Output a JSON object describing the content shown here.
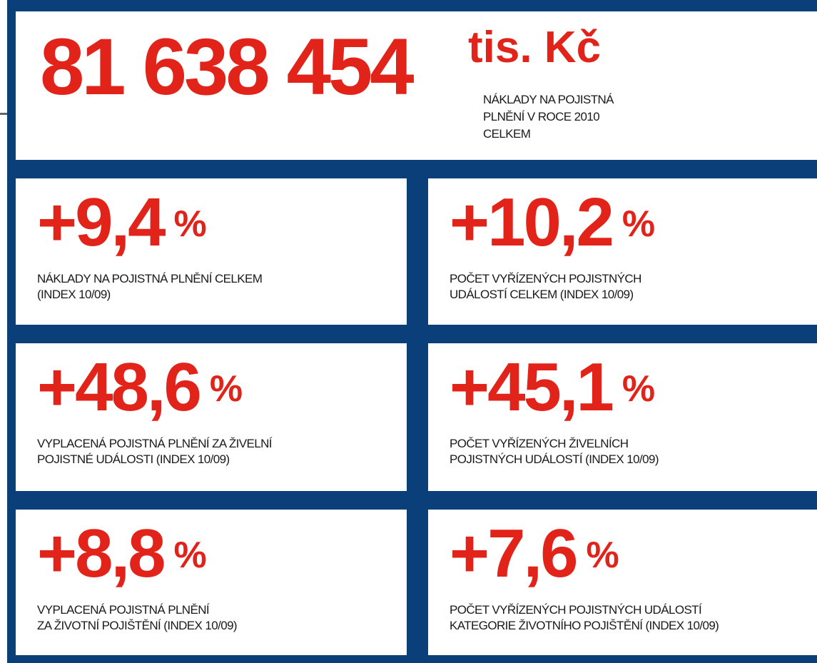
{
  "header": {
    "value": "81 638 454",
    "unit": "tis. Kč",
    "description": [
      "NÁKLADY NA POJISTNÁ",
      "PLNĚNÍ V ROCE 2010",
      "CELKEM"
    ]
  },
  "tiles": [
    {
      "value": "+9,4",
      "unit": "%",
      "description": [
        "NÁKLADY NA POJISTNÁ PLNĚNÍ CELKEM",
        "(INDEX 10/09)"
      ]
    },
    {
      "value": "+10,2",
      "unit": "%",
      "description": [
        "POČET VYŘÍZENÝCH POJISTNÝCH",
        "UDÁLOSTÍ CELKEM (INDEX 10/09)"
      ]
    },
    {
      "value": "+48,6",
      "unit": "%",
      "description": [
        "VYPLACENÁ POJISTNÁ PLNĚNÍ ZA ŽIVELNÍ",
        "POJISTNÉ UDÁLOSTI (INDEX 10/09)"
      ]
    },
    {
      "value": "+45,1",
      "unit": "%",
      "description": [
        "POČET VYŘÍZENÝCH ŽIVELNÍCH",
        "POJISTNÝCH UDÁLOSTÍ (INDEX 10/09)"
      ]
    },
    {
      "value": "+8,8",
      "unit": "%",
      "description": [
        "VYPLACENÁ POJISTNÁ PLNĚNÍ",
        "ZA ŽIVOTNÍ POJIŠTĚNÍ (INDEX 10/09)"
      ]
    },
    {
      "value": "+7,6",
      "unit": "%",
      "description": [
        "POČET VYŘÍZENÝCH POJISTNÝCH UDÁLOSTÍ",
        "KATEGORIE ŽIVOTNÍHO POJIŠTĚNÍ (INDEX 10/09)"
      ]
    }
  ]
}
